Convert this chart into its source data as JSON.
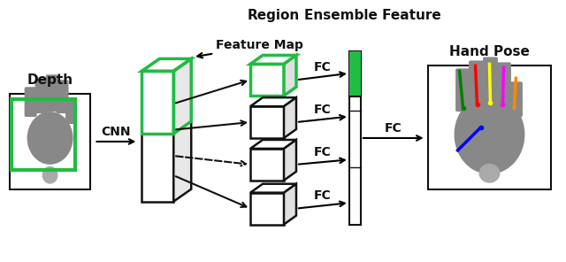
{
  "bg_color": "#ffffff",
  "green": "#22bb44",
  "black": "#111111",
  "label_depth": "Depth",
  "label_cnn": "CNN",
  "label_feature_map": "Feature Map",
  "label_region": "Region",
  "label_ensemble": "Ensemble Feature",
  "label_fc": "FC",
  "label_hand_pose": "Hand Pose",
  "fig_width": 6.4,
  "fig_height": 2.96,
  "dpi": 100
}
